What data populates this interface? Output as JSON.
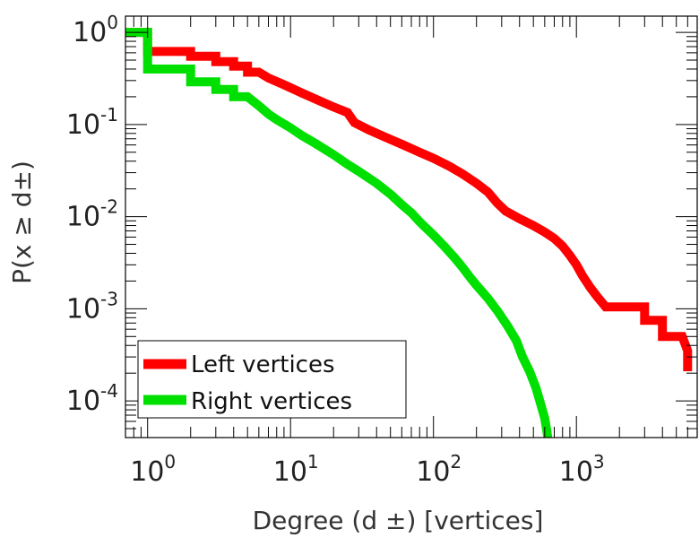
{
  "chart_data": {
    "type": "line",
    "step": true,
    "title": "",
    "xlabel": "Degree (d ±) [vertices]",
    "ylabel": "P(x ≥ d±)",
    "xscale": "log",
    "yscale": "log",
    "xlim": [
      0.7,
      7000
    ],
    "ylim": [
      4e-05,
      1.5
    ],
    "grid": false,
    "legend_position": "bottom-left",
    "x_ticks": [
      {
        "base": "10",
        "exp": "0",
        "value": 1
      },
      {
        "base": "10",
        "exp": "1",
        "value": 10
      },
      {
        "base": "10",
        "exp": "2",
        "value": 100
      },
      {
        "base": "10",
        "exp": "3",
        "value": 1000
      }
    ],
    "y_ticks": [
      {
        "base": "10",
        "exp": "0",
        "value": 1
      },
      {
        "base": "10",
        "exp": "-1",
        "value": 0.1
      },
      {
        "base": "10",
        "exp": "-2",
        "value": 0.01
      },
      {
        "base": "10",
        "exp": "-3",
        "value": 0.001
      },
      {
        "base": "10",
        "exp": "-4",
        "value": 0.0001
      }
    ],
    "series": [
      {
        "name": "Left vertices",
        "color": "#ff0000",
        "points": [
          [
            0.7,
            1.0
          ],
          [
            1,
            1.0
          ],
          [
            1,
            0.62
          ],
          [
            2,
            0.62
          ],
          [
            2,
            0.55
          ],
          [
            3,
            0.55
          ],
          [
            3,
            0.48
          ],
          [
            4,
            0.48
          ],
          [
            4,
            0.43
          ],
          [
            5,
            0.43
          ],
          [
            5,
            0.37
          ],
          [
            6,
            0.37
          ],
          [
            7,
            0.32
          ],
          [
            9,
            0.27
          ],
          [
            12,
            0.22
          ],
          [
            16,
            0.18
          ],
          [
            20,
            0.155
          ],
          [
            25,
            0.135
          ],
          [
            28,
            0.105
          ],
          [
            35,
            0.088
          ],
          [
            45,
            0.074
          ],
          [
            60,
            0.061
          ],
          [
            80,
            0.05
          ],
          [
            100,
            0.043
          ],
          [
            130,
            0.035
          ],
          [
            160,
            0.029
          ],
          [
            200,
            0.023
          ],
          [
            240,
            0.0185
          ],
          [
            280,
            0.014
          ],
          [
            320,
            0.0115
          ],
          [
            400,
            0.0095
          ],
          [
            500,
            0.008
          ],
          [
            600,
            0.0068
          ],
          [
            700,
            0.0058
          ],
          [
            800,
            0.0048
          ],
          [
            900,
            0.0038
          ],
          [
            1000,
            0.003
          ],
          [
            1100,
            0.0023
          ],
          [
            1250,
            0.0017
          ],
          [
            1400,
            0.00135
          ],
          [
            1600,
            0.00105
          ],
          [
            2500,
            0.00105
          ],
          [
            3000,
            0.00105
          ],
          [
            3000,
            0.00075
          ],
          [
            4000,
            0.00075
          ],
          [
            4000,
            0.0005
          ],
          [
            5500,
            0.0005
          ],
          [
            6000,
            0.00035
          ],
          [
            6000,
            0.00021
          ]
        ]
      },
      {
        "name": "Right vertices",
        "color": "#00e000",
        "points": [
          [
            0.7,
            1.0
          ],
          [
            1,
            1.0
          ],
          [
            1,
            0.4
          ],
          [
            2,
            0.4
          ],
          [
            2,
            0.29
          ],
          [
            3,
            0.29
          ],
          [
            3,
            0.24
          ],
          [
            4,
            0.24
          ],
          [
            4,
            0.2
          ],
          [
            5,
            0.2
          ],
          [
            6,
            0.16
          ],
          [
            7,
            0.13
          ],
          [
            8,
            0.113
          ],
          [
            10,
            0.092
          ],
          [
            12,
            0.076
          ],
          [
            15,
            0.062
          ],
          [
            20,
            0.047
          ],
          [
            25,
            0.037
          ],
          [
            30,
            0.031
          ],
          [
            40,
            0.023
          ],
          [
            50,
            0.0175
          ],
          [
            60,
            0.0135
          ],
          [
            70,
            0.011
          ],
          [
            80,
            0.0088
          ],
          [
            100,
            0.0063
          ],
          [
            120,
            0.0047
          ],
          [
            140,
            0.0036
          ],
          [
            160,
            0.0028
          ],
          [
            180,
            0.0022
          ],
          [
            200,
            0.0018
          ],
          [
            240,
            0.0013
          ],
          [
            280,
            0.00095
          ],
          [
            330,
            0.00065
          ],
          [
            380,
            0.00045
          ],
          [
            420,
            0.0003
          ],
          [
            470,
            0.00021
          ],
          [
            520,
            0.00014
          ],
          [
            560,
            9.5e-05
          ],
          [
            600,
            6.5e-05
          ],
          [
            620,
            4.8e-05
          ],
          [
            630,
            4e-05
          ]
        ]
      }
    ]
  }
}
